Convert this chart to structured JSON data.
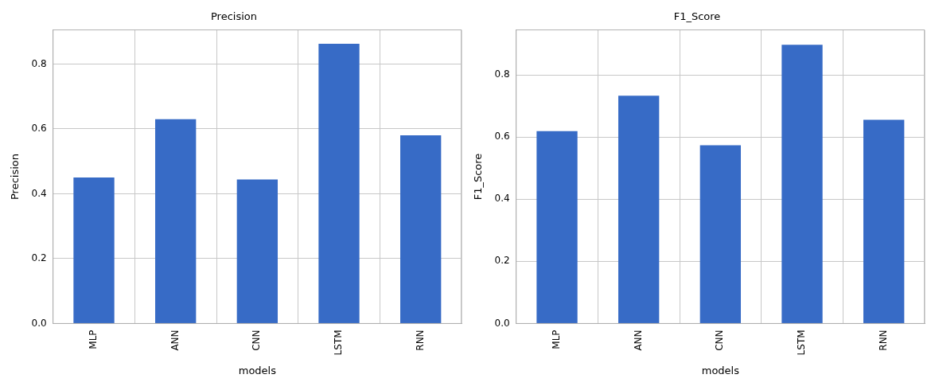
{
  "chart_data": [
    {
      "type": "bar",
      "title": "Precision",
      "xlabel": "models",
      "ylabel": "Precision",
      "categories": [
        "MLP",
        "ANN",
        "CNN",
        "LSTM",
        "RNN"
      ],
      "values": [
        0.45,
        0.63,
        0.444,
        0.862,
        0.58
      ],
      "color": "#376bc6",
      "ylim": [
        0,
        0.905
      ],
      "yticks": [
        {
          "value": 0,
          "label": "0.0"
        },
        {
          "value": 0.2,
          "label": "0.2"
        },
        {
          "value": 0.4,
          "label": "0.4"
        },
        {
          "value": 0.6,
          "label": "0.6"
        },
        {
          "value": 0.8,
          "label": "0.8"
        }
      ],
      "grid": true,
      "legend": false
    },
    {
      "type": "bar",
      "title": "F1_Score",
      "xlabel": "models",
      "ylabel": "F1_Score",
      "categories": [
        "MLP",
        "ANN",
        "CNN",
        "LSTM",
        "RNN"
      ],
      "values": [
        0.619,
        0.733,
        0.574,
        0.897,
        0.656
      ],
      "color": "#376bc6",
      "ylim": [
        0,
        0.945
      ],
      "yticks": [
        {
          "value": 0,
          "label": "0.0"
        },
        {
          "value": 0.2,
          "label": "0.2"
        },
        {
          "value": 0.4,
          "label": "0.4"
        },
        {
          "value": 0.6,
          "label": "0.6"
        },
        {
          "value": 0.8,
          "label": "0.8"
        }
      ],
      "grid": true,
      "legend": false
    }
  ]
}
